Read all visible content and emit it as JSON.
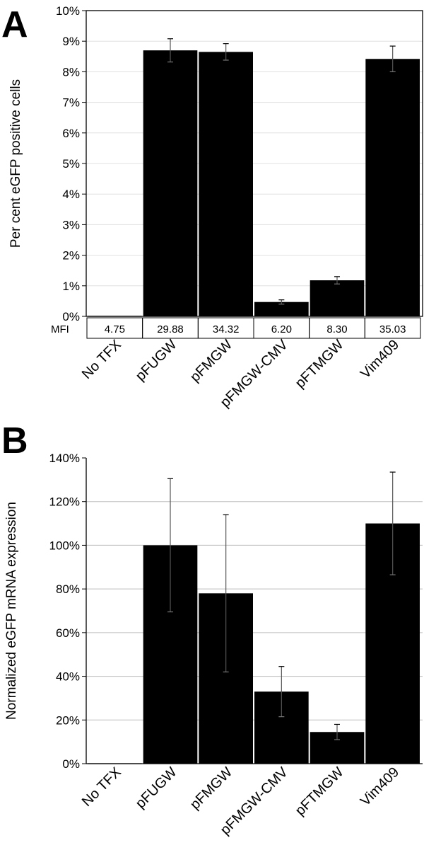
{
  "chart_data": [
    {
      "type": "bar",
      "panel": "A",
      "title": "",
      "xlabel": "",
      "ylabel": "Per cent eGFP positive cells",
      "ylim": [
        0,
        10
      ],
      "yticks": [
        "0%",
        "1%",
        "2%",
        "3%",
        "4%",
        "5%",
        "6%",
        "7%",
        "8%",
        "9%",
        "10%"
      ],
      "categories": [
        "No TFX",
        "pFUGW",
        "pFMGW",
        "pFMGW-CMV",
        "pFTMGW",
        "Vim409"
      ],
      "values": [
        0.02,
        8.7,
        8.65,
        0.47,
        1.18,
        8.42
      ],
      "errors": [
        0.0,
        0.38,
        0.27,
        0.07,
        0.12,
        0.42
      ],
      "mfi_label": "MFI",
      "mfi": [
        "4.75",
        "29.88",
        "34.32",
        "6.20",
        "8.30",
        "35.03"
      ],
      "grid": true
    },
    {
      "type": "bar",
      "panel": "B",
      "title": "",
      "xlabel": "",
      "ylabel": "Normalized eGFP mRNA expression",
      "ylim": [
        0,
        140
      ],
      "yticks": [
        "0%",
        "20%",
        "40%",
        "60%",
        "80%",
        "100%",
        "120%",
        "140%"
      ],
      "categories": [
        "No TFX",
        "pFUGW",
        "pFMGW",
        "pFMGW-CMV",
        "pFTMGW",
        "Vim409"
      ],
      "values": [
        0.2,
        100,
        78,
        33,
        14.5,
        110
      ],
      "errors": [
        0.0,
        30.5,
        36,
        11.5,
        3.5,
        23.5
      ],
      "grid": true
    }
  ]
}
